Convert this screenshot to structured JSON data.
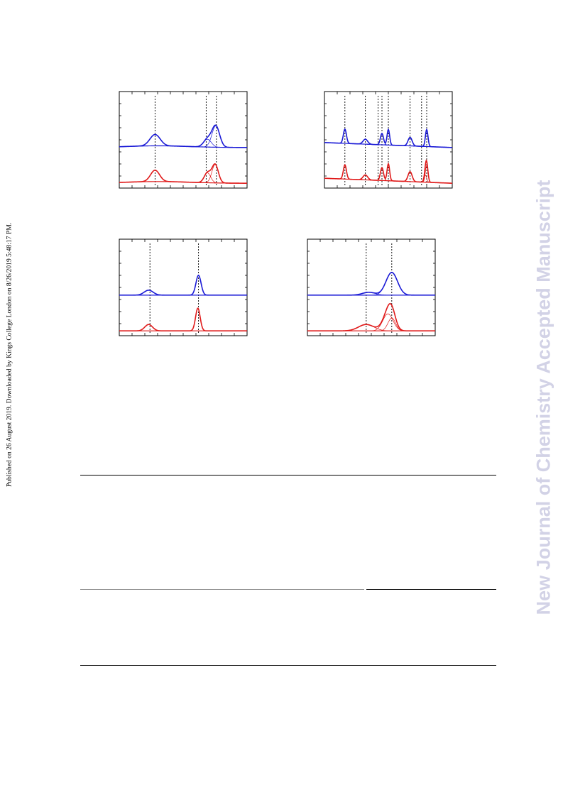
{
  "side_note": "Published on 26 August 2019. Downloaded by Kings College London on 8/26/2019 5:48:17 PM.",
  "watermark": "New Journal of Chemistry Accepted Manuscript",
  "colors": {
    "upper_trace": "#1a1ad6",
    "lower_trace": "#e01a1a",
    "axis": "#000000",
    "watermark": "#d2d2e6"
  },
  "panels": [
    {
      "id": "top-left",
      "reference_lines": [
        0.28,
        0.68,
        0.76
      ],
      "upper_peaks": [
        {
          "pos": 0.28,
          "height": 0.8,
          "width": 0.04
        },
        {
          "pos": 0.69,
          "height": 0.55,
          "width": 0.03
        },
        {
          "pos": 0.755,
          "height": 1.5,
          "width": 0.03
        }
      ],
      "lower_peaks": [
        {
          "pos": 0.28,
          "height": 0.8,
          "width": 0.035
        },
        {
          "pos": 0.69,
          "height": 0.7,
          "width": 0.025
        },
        {
          "pos": 0.75,
          "height": 1.3,
          "width": 0.025
        }
      ],
      "background": "curved"
    },
    {
      "id": "top-right",
      "reference_lines": [
        0.16,
        0.32,
        0.42,
        0.45,
        0.5,
        0.67,
        0.76,
        0.8
      ],
      "upper_peaks": [
        {
          "pos": 0.16,
          "height": 1.0,
          "width": 0.012
        },
        {
          "pos": 0.32,
          "height": 0.35,
          "width": 0.018
        },
        {
          "pos": 0.45,
          "height": 0.8,
          "width": 0.012
        },
        {
          "pos": 0.5,
          "height": 1.1,
          "width": 0.01
        },
        {
          "pos": 0.67,
          "height": 0.6,
          "width": 0.016
        },
        {
          "pos": 0.8,
          "height": 1.2,
          "width": 0.01
        }
      ],
      "lower_peaks": [
        {
          "pos": 0.16,
          "height": 1.0,
          "width": 0.012
        },
        {
          "pos": 0.32,
          "height": 0.35,
          "width": 0.018
        },
        {
          "pos": 0.45,
          "height": 0.9,
          "width": 0.012
        },
        {
          "pos": 0.5,
          "height": 1.2,
          "width": 0.01
        },
        {
          "pos": 0.67,
          "height": 0.7,
          "width": 0.016
        },
        {
          "pos": 0.79,
          "height": 0.5,
          "width": 0.01
        },
        {
          "pos": 0.8,
          "height": 1.2,
          "width": 0.01
        }
      ],
      "background": "sloped"
    },
    {
      "id": "bottom-left",
      "reference_lines": [
        0.24,
        0.62
      ],
      "upper_peaks": [
        {
          "pos": 0.23,
          "height": 0.35,
          "width": 0.035
        },
        {
          "pos": 0.62,
          "height": 1.4,
          "width": 0.02
        }
      ],
      "lower_peaks": [
        {
          "pos": 0.23,
          "height": 0.45,
          "width": 0.03
        },
        {
          "pos": 0.615,
          "height": 1.6,
          "width": 0.018
        }
      ],
      "background": "flat"
    },
    {
      "id": "bottom-right",
      "reference_lines": [
        0.46,
        0.66
      ],
      "upper_peaks": [
        {
          "pos": 0.48,
          "height": 0.2,
          "width": 0.05
        },
        {
          "pos": 0.66,
          "height": 1.6,
          "width": 0.045
        }
      ],
      "lower_peaks": [
        {
          "pos": 0.46,
          "height": 0.45,
          "width": 0.06
        },
        {
          "pos": 0.63,
          "height": 1.2,
          "width": 0.04
        },
        {
          "pos": 0.66,
          "height": 0.9,
          "width": 0.03
        }
      ],
      "background": "flat"
    }
  ]
}
